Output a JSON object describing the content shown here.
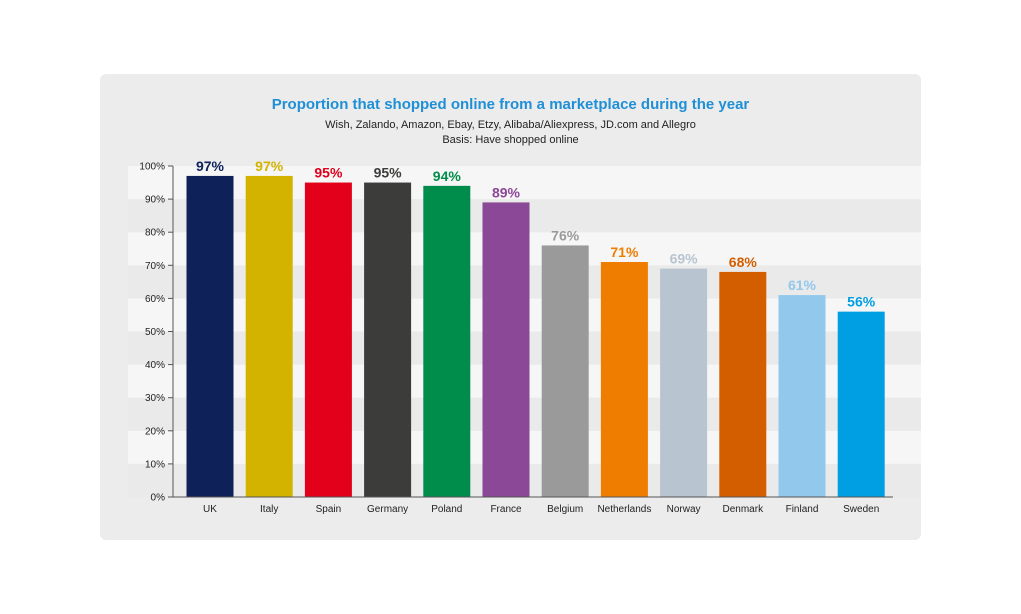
{
  "chart_data": {
    "type": "bar",
    "title": "Proportion that shopped online from a marketplace during the year",
    "subtitle": "Wish, Zalando, Amazon, Ebay, Etzy, Alibaba/Aliexpress, JD.com and Allegro",
    "note": "Basis: Have shopped online",
    "categories": [
      "UK",
      "Italy",
      "Spain",
      "Germany",
      "Poland",
      "France",
      "Belgium",
      "Netherlands",
      "Norway",
      "Denmark",
      "Finland",
      "Sweden"
    ],
    "values": [
      97,
      97,
      95,
      95,
      94,
      89,
      76,
      71,
      69,
      68,
      61,
      56
    ],
    "value_labels": [
      "97%",
      "97%",
      "95%",
      "95%",
      "94%",
      "89%",
      "76%",
      "71%",
      "69%",
      "68%",
      "61%",
      "56%"
    ],
    "colors": [
      "#0e2259",
      "#d4b300",
      "#e2001a",
      "#3c3c3b",
      "#008c4a",
      "#8b4897",
      "#9a9a9a",
      "#ef7d00",
      "#b8c4cf",
      "#d35e00",
      "#91c8ec",
      "#009fe3"
    ],
    "ylim": [
      0,
      100
    ],
    "yticks": [
      "0%",
      "10%",
      "20%",
      "30%",
      "40%",
      "50%",
      "60%",
      "70%",
      "80%",
      "90%",
      "100%"
    ],
    "xlabel": "",
    "ylabel": "",
    "grid": false,
    "background_bands": true
  }
}
